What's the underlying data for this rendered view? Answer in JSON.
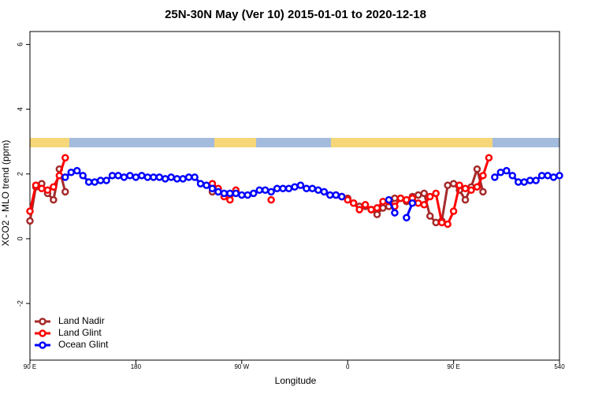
{
  "chart_data": {
    "type": "line",
    "title": "25N-30N May (Ver 10)   2015-01-01 to 2020-12-18",
    "x_label": "Longitude",
    "y_label": "XCO2 - MLO trend (ppm)",
    "xlim": [
      90,
      540
    ],
    "ylim": [
      -3.75,
      6.4
    ],
    "xticks": [
      {
        "value": 90,
        "label": "90 E"
      },
      180,
      {
        "value": 270,
        "label": "90 W"
      },
      {
        "value": 360,
        "label": "0"
      },
      {
        "value": 450,
        "label": "90 E"
      },
      540
    ],
    "yticks": [
      -2,
      0,
      2,
      4,
      6
    ],
    "legend": "bottom-left",
    "series": [
      {
        "name": "Land Nadir",
        "color": "#a52a2a",
        "x": [
          90,
          95,
          100,
          105,
          110,
          115,
          120,
          125,
          245,
          250,
          265,
          270,
          355,
          360,
          365,
          370,
          375,
          380,
          385,
          390,
          395,
          400,
          405,
          410,
          415,
          420,
          425,
          430,
          435,
          440,
          445,
          450,
          455,
          460,
          465,
          470,
          475
        ],
        "values": [
          0.55,
          1.6,
          1.7,
          1.4,
          1.2,
          2.15,
          1.45,
          null,
          1.45,
          null,
          1.45,
          null,
          1.3,
          1.25,
          1.1,
          1.0,
          1.0,
          0.9,
          0.75,
          0.95,
          1.0,
          1.25,
          1.25,
          1.15,
          1.3,
          1.35,
          1.4,
          0.7,
          0.5,
          0.55,
          1.65,
          1.7,
          1.5,
          1.2,
          1.6,
          2.15,
          1.45
        ]
      },
      {
        "name": "Land Glint",
        "color": "#ff0000",
        "x": [
          90,
          95,
          100,
          105,
          110,
          115,
          120,
          125,
          245,
          250,
          255,
          260,
          265,
          270,
          295,
          300,
          350,
          355,
          360,
          365,
          370,
          375,
          380,
          385,
          390,
          395,
          400,
          405,
          410,
          415,
          420,
          425,
          430,
          435,
          440,
          445,
          450,
          455,
          460,
          465,
          470,
          475,
          480
        ],
        "values": [
          0.85,
          1.65,
          1.55,
          1.5,
          1.6,
          1.95,
          2.5,
          null,
          1.7,
          1.55,
          1.3,
          1.2,
          1.5,
          null,
          1.2,
          null,
          1.35,
          1.3,
          1.2,
          1.1,
          0.9,
          1.05,
          0.9,
          0.95,
          1.15,
          1.15,
          1.0,
          1.25,
          1.2,
          1.25,
          1.1,
          1.05,
          1.3,
          1.4,
          0.5,
          0.45,
          0.85,
          1.65,
          1.55,
          1.5,
          1.6,
          1.95,
          2.5
        ]
      },
      {
        "name": "Ocean Glint",
        "color": "#0000ff",
        "x": [
          120,
          125,
          130,
          135,
          140,
          145,
          150,
          155,
          160,
          165,
          170,
          175,
          180,
          185,
          190,
          195,
          200,
          205,
          210,
          215,
          220,
          225,
          230,
          235,
          240,
          245,
          250,
          255,
          260,
          265,
          270,
          275,
          280,
          285,
          290,
          295,
          300,
          305,
          310,
          315,
          320,
          325,
          330,
          335,
          340,
          345,
          350,
          355,
          360,
          395,
          400,
          405,
          410,
          415,
          420,
          485,
          490,
          495,
          500,
          505,
          510,
          515,
          520,
          525,
          530,
          535,
          540
        ],
        "values": [
          1.9,
          2.05,
          2.1,
          1.95,
          1.75,
          1.75,
          1.8,
          1.8,
          1.95,
          1.95,
          1.9,
          1.95,
          1.9,
          1.95,
          1.9,
          1.9,
          1.9,
          1.85,
          1.9,
          1.85,
          1.85,
          1.9,
          1.9,
          1.7,
          1.65,
          1.55,
          1.45,
          1.4,
          1.4,
          1.4,
          1.35,
          1.35,
          1.4,
          1.5,
          1.5,
          1.45,
          1.55,
          1.55,
          1.55,
          1.6,
          1.65,
          1.55,
          1.55,
          1.5,
          1.45,
          1.35,
          1.35,
          1.3,
          null,
          1.2,
          0.8,
          null,
          0.65,
          1.1,
          null,
          1.9,
          2.05,
          2.1,
          1.95,
          1.75,
          1.75,
          1.8,
          1.8,
          1.95,
          1.95,
          1.9,
          1.95
        ]
      }
    ]
  }
}
